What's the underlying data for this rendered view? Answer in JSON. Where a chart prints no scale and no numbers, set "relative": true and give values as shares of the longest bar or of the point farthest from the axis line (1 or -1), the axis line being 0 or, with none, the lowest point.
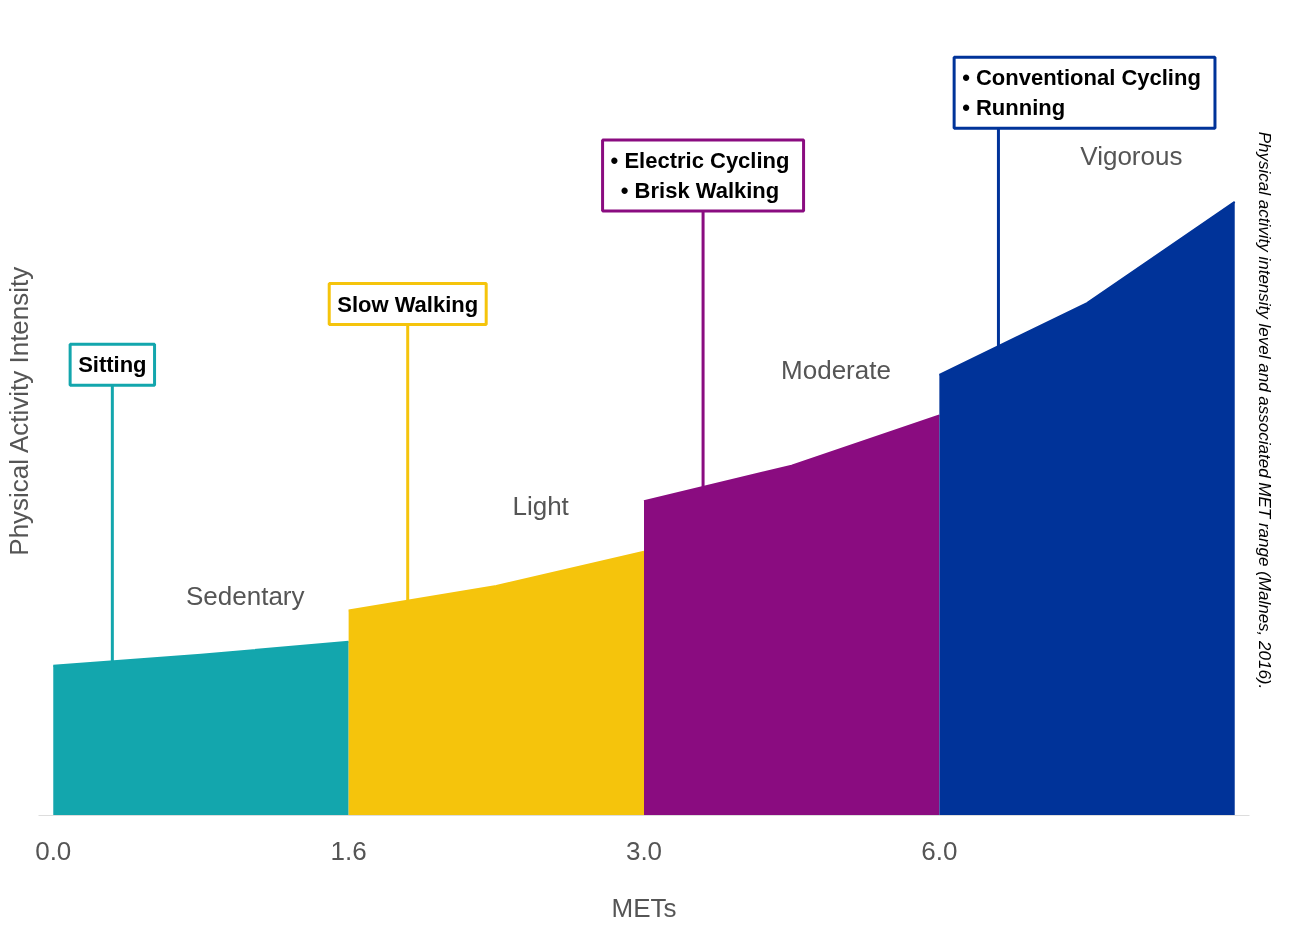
{
  "chart_data": {
    "type": "area",
    "relative": true,
    "xlabel": "METs",
    "ylabel": "Physical Activity Intensity",
    "categories": [
      "0.0",
      null,
      "1.6",
      null,
      "3.0",
      null,
      "6.0",
      null,
      null
    ],
    "grid": false,
    "series": [
      {
        "name": "Sedentary",
        "color": "#13a6ad",
        "values": [
          0.244,
          0.262,
          0.283,
          null,
          null,
          null,
          null,
          null,
          null
        ]
      },
      {
        "name": "Light",
        "color": "#f5c40c",
        "values": [
          null,
          null,
          0.334,
          0.374,
          0.43,
          null,
          null,
          null,
          null
        ]
      },
      {
        "name": "Moderate",
        "color": "#8a0c80",
        "values": [
          null,
          null,
          null,
          null,
          0.512,
          0.57,
          0.652,
          null,
          null
        ]
      },
      {
        "name": "Vigorous",
        "color": "#003399",
        "values": [
          null,
          null,
          null,
          null,
          null,
          null,
          0.718,
          0.835,
          1.0
        ]
      }
    ],
    "annotations": [
      "Sitting",
      "Slow Walking",
      "•  Electric Cycling\n•  Brisk Walking",
      "•  Conventional Cycling\n•  Running",
      "Physical activity intensity level and associated MET range (Malnes, 2016)."
    ]
  }
}
